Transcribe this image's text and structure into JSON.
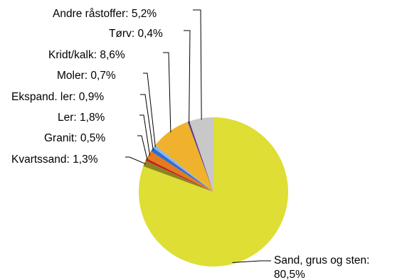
{
  "chart_data": {
    "type": "pie",
    "title": "",
    "start_angle_deg": 0,
    "direction": "clockwise",
    "slices": [
      {
        "label": "Sand, grus og sten:",
        "label_line2": "80,5%",
        "value": 80.5,
        "color": "#dede35"
      },
      {
        "label": "Kvartssand: 1,3%",
        "value": 1.3,
        "color": "#8c8420"
      },
      {
        "label": "Granit: 0,5%",
        "value": 0.5,
        "color": "#c41e1e"
      },
      {
        "label": "Ler: 1,8%",
        "value": 1.8,
        "color": "#e57a1f"
      },
      {
        "label": "Ekspand. ler: 0,9%",
        "value": 0.9,
        "color": "#2f6fcf"
      },
      {
        "label": "Moler: 0,7%",
        "value": 0.7,
        "color": "#8fb5e8"
      },
      {
        "label": "Kridt/kalk: 8,6%",
        "value": 8.6,
        "color": "#f0b22c"
      },
      {
        "label": "Tørv: 0,4%",
        "value": 0.4,
        "color": "#5a3a8a"
      },
      {
        "label": "Andre råstoffer: 5,2%",
        "value": 5.2,
        "color": "#c8c8c8"
      }
    ]
  }
}
